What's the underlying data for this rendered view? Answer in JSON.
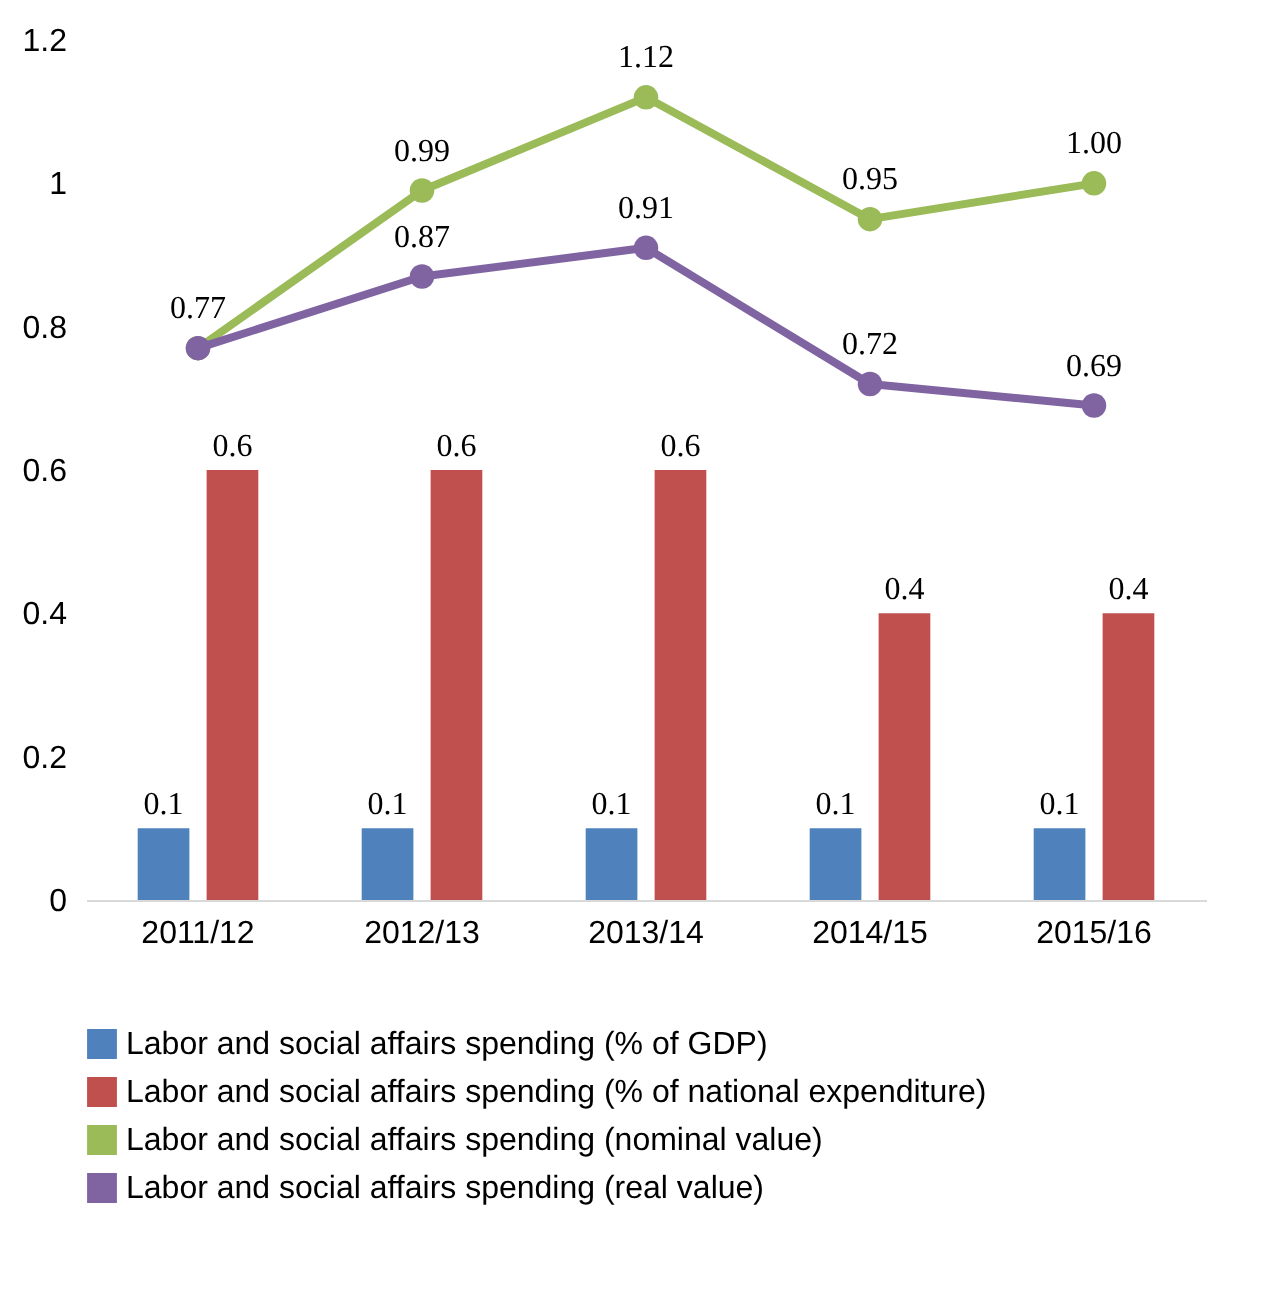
{
  "chart_data": {
    "type": "bar",
    "categories": [
      "2011/12",
      "2012/13",
      "2013/14",
      "2014/15",
      "2015/16"
    ],
    "series": [
      {
        "name": "Labor and social affairs spending (% of GDP)",
        "color": "#4f81bd",
        "values": [
          0.1,
          0.1,
          0.1,
          0.1,
          0.1
        ],
        "value_labels": [
          "0.1",
          "0.1",
          "0.1",
          "0.1",
          "0.1"
        ]
      },
      {
        "name": "Labor and social affairs spending  (% of national expenditure)",
        "color": "#c0504d",
        "values": [
          0.6,
          0.6,
          0.6,
          0.4,
          0.4
        ],
        "value_labels": [
          "0.6",
          "0.6",
          "0.6",
          "0.4",
          "0.4"
        ]
      },
      {
        "name": "Labor and social affairs spending (nominal value)",
        "type": "line",
        "color": "#9bbb59",
        "values": [
          0.77,
          0.99,
          1.12,
          0.95,
          1.0
        ],
        "value_labels": [
          null,
          "0.99",
          "1.12",
          "0.95",
          "1.00"
        ]
      },
      {
        "name": "Labor and social affairs spending (real value)",
        "type": "line",
        "color": "#8064a2",
        "values": [
          0.77,
          0.87,
          0.91,
          0.72,
          0.69
        ],
        "value_labels": [
          "0.77",
          "0.87",
          "0.91",
          "0.72",
          "0.69"
        ]
      }
    ],
    "ylim": [
      0,
      1.2
    ],
    "yticks": [
      0,
      0.2,
      0.4,
      0.6,
      0.8,
      1,
      1.2
    ],
    "grid": false,
    "legend": "bottom",
    "marker": "circle"
  }
}
